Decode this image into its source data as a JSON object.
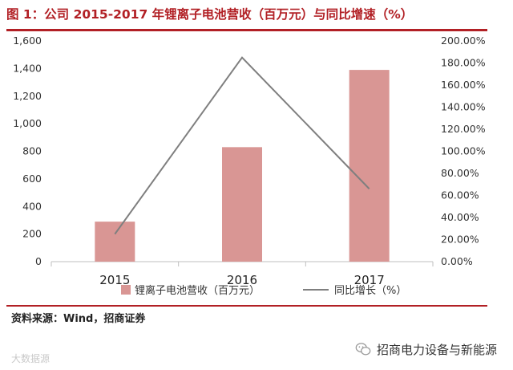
{
  "title": "图 1：公司 2015-2017 年锂离子电池营收（百万元）与同比增速（%）",
  "source": "资料来源：Wind，招商证券",
  "watermark": "大数据源",
  "brand": "招商电力设备与新能源",
  "chart_data": {
    "type": "bar",
    "categories": [
      "2015",
      "2016",
      "2017"
    ],
    "series": [
      {
        "name": "锂离子电池营收（百万元）",
        "type": "bar",
        "axis": "left",
        "values": [
          290,
          830,
          1390
        ],
        "color": "#d99694"
      },
      {
        "name": "同比增长（%）",
        "type": "line",
        "axis": "right",
        "values": [
          25,
          185,
          66
        ],
        "color": "#7f7f7f"
      }
    ],
    "left_axis": {
      "min": 0,
      "max": 1600,
      "ticks": [
        "0",
        "200",
        "400",
        "600",
        "800",
        "1,000",
        "1,200",
        "1,400",
        "1,600"
      ]
    },
    "right_axis": {
      "min": 0,
      "max": 200,
      "ticks": [
        "0.00%",
        "20.00%",
        "40.00%",
        "60.00%",
        "80.00%",
        "100.00%",
        "120.00%",
        "140.00%",
        "160.00%",
        "180.00%",
        "200.00%"
      ]
    },
    "grid": false,
    "legend_position": "bottom"
  }
}
